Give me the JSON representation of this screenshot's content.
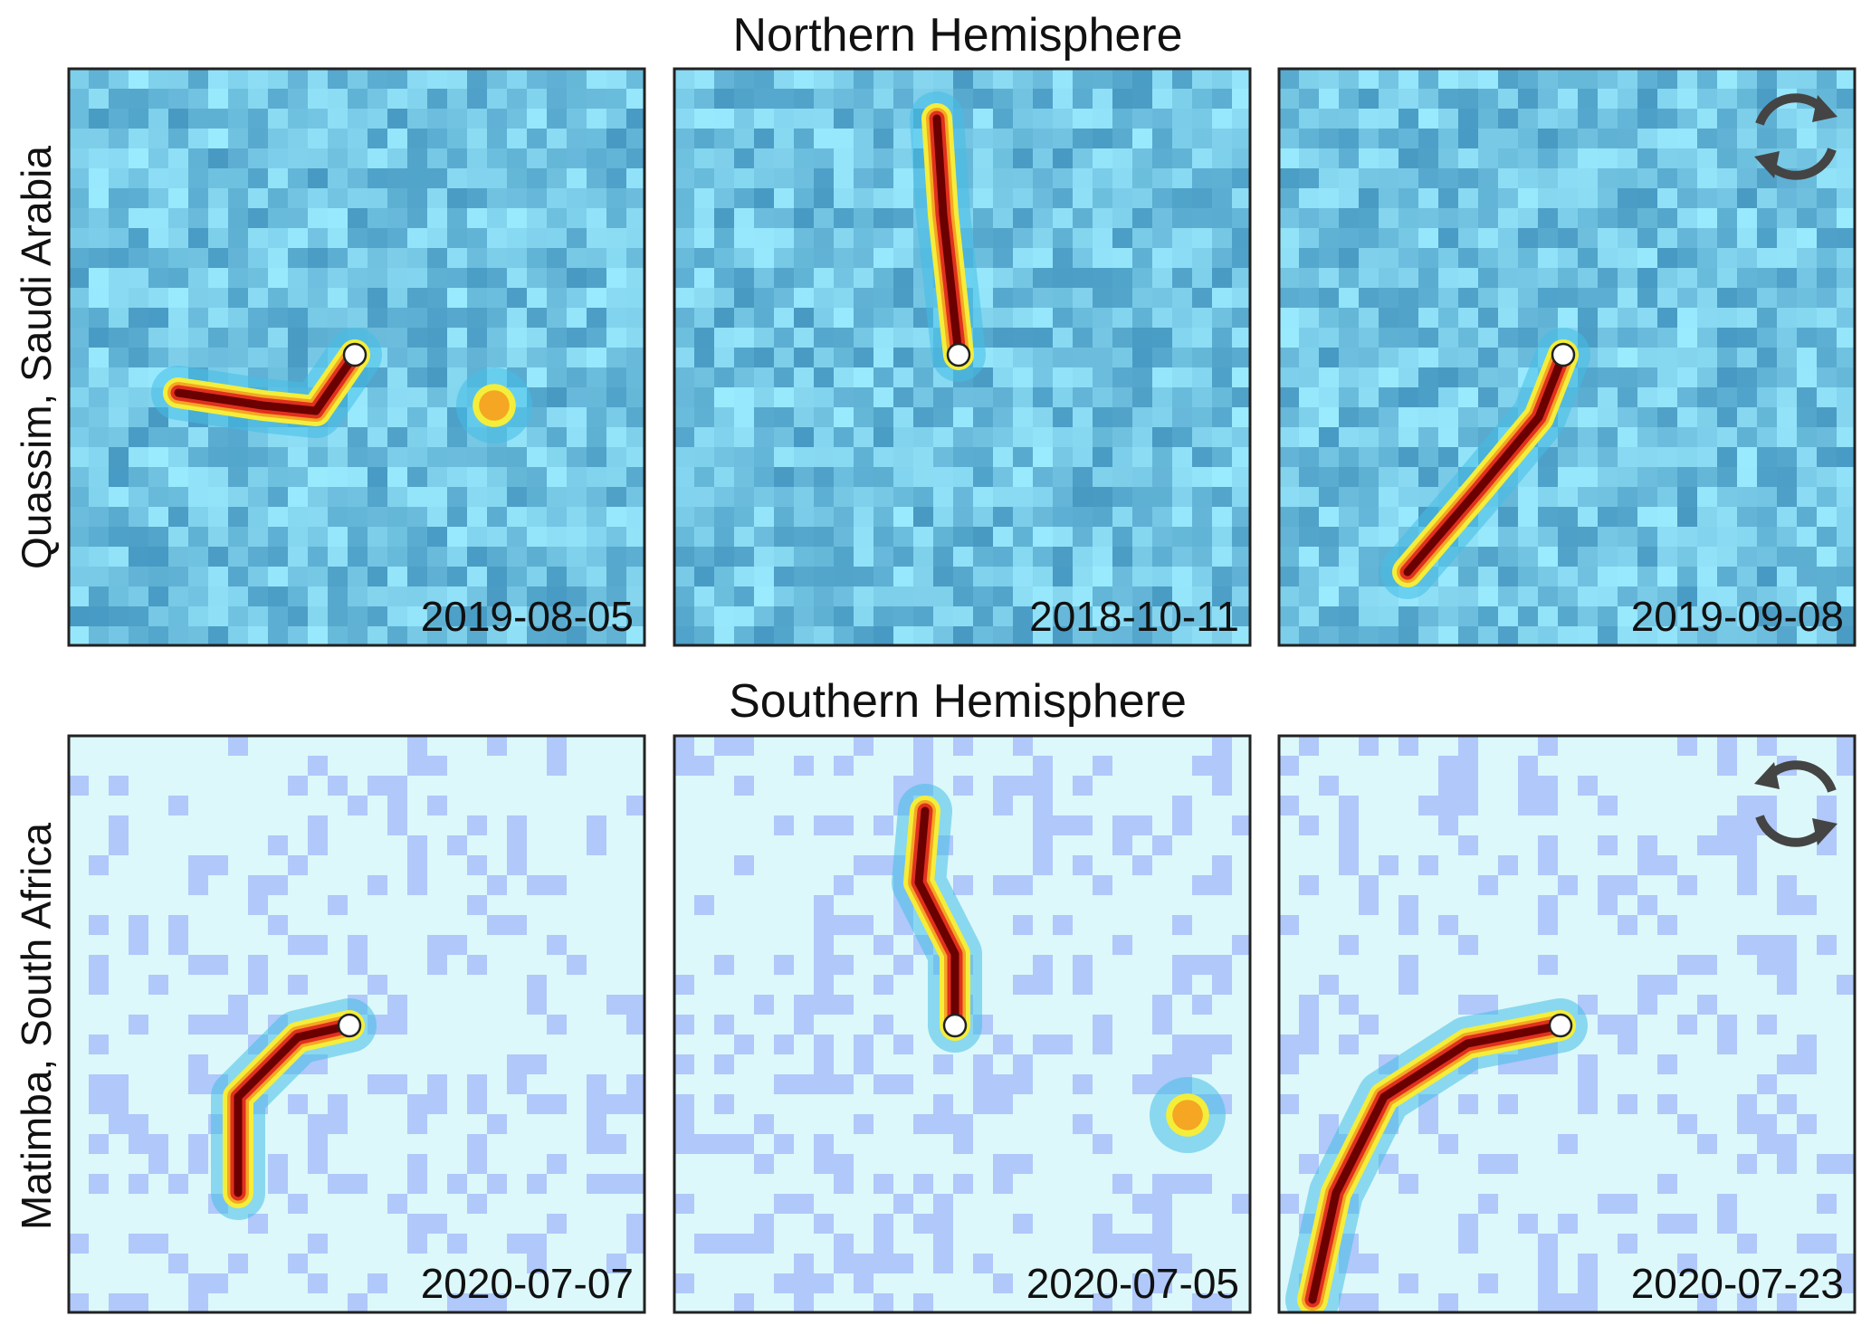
{
  "rows": [
    {
      "title": "Northern Hemisphere",
      "site": "Quassim, Saudi Arabia",
      "panels": [
        {
          "date": "2019-08-05"
        },
        {
          "date": "2018-10-11"
        },
        {
          "date": "2019-09-08"
        }
      ]
    },
    {
      "title": "Southern Hemisphere",
      "site": "Matimba, South Africa",
      "panels": [
        {
          "date": "2020-07-07"
        },
        {
          "date": "2020-07-05"
        },
        {
          "date": "2020-07-23"
        }
      ]
    }
  ]
}
